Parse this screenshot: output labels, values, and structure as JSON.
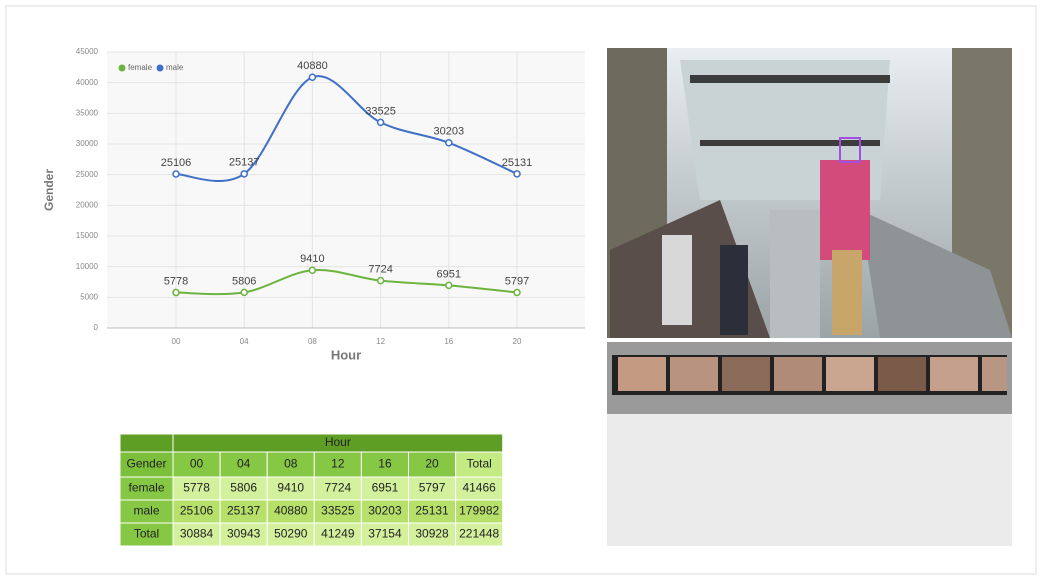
{
  "chart_data": {
    "type": "line",
    "x_label": "Hour",
    "y_label": "Gender",
    "categories": [
      "00",
      "04",
      "08",
      "12",
      "16",
      "20"
    ],
    "series": [
      {
        "name": "female",
        "color": "#6cb33f",
        "values": [
          5778,
          5806,
          9410,
          7724,
          6951,
          5797
        ]
      },
      {
        "name": "male",
        "color": "#3f6fc6",
        "values": [
          25106,
          25137,
          40880,
          33525,
          30203,
          25131
        ]
      }
    ],
    "ylim": [
      0,
      45000
    ],
    "yticks": [
      0,
      5000,
      10000,
      15000,
      20000,
      25000,
      30000,
      35000,
      40000,
      45000
    ],
    "grid": true,
    "legend": "top-left"
  },
  "table": {
    "group_header": "Hour",
    "row_header": "Gender",
    "columns": [
      "00",
      "04",
      "08",
      "12",
      "16",
      "20",
      "Total"
    ],
    "rows": [
      {
        "label": "female",
        "values": [
          5778,
          5806,
          9410,
          7724,
          6951,
          5797,
          41466
        ]
      },
      {
        "label": "male",
        "values": [
          25106,
          25137,
          40880,
          33525,
          30203,
          25131,
          179982
        ]
      },
      {
        "label": "Total",
        "values": [
          30884,
          30943,
          50290,
          41249,
          37154,
          30928,
          221448
        ]
      }
    ]
  }
}
